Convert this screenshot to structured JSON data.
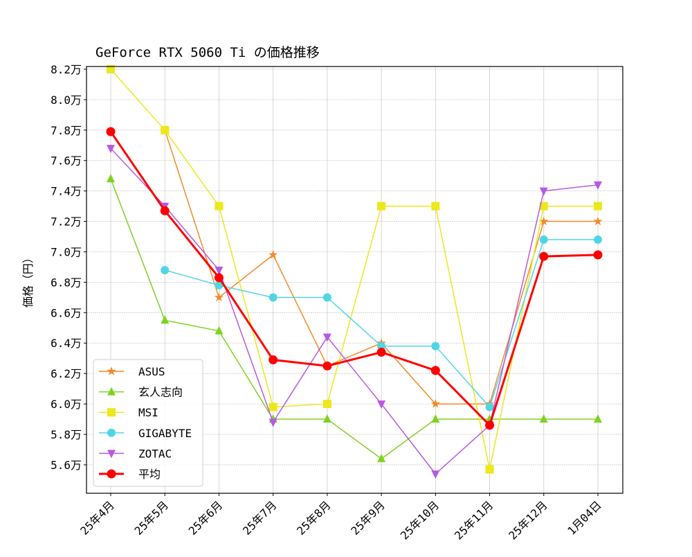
{
  "chart_data": {
    "type": "line",
    "title": "GeForce RTX 5060 Ti の価格推移",
    "ylabel": "価格（円）",
    "xlabel": "",
    "categories": [
      "25年4月",
      "25年5月",
      "25年6月",
      "25年7月",
      "25年8月",
      "25年9月",
      "25年10月",
      "25年11月",
      "25年12月",
      "1月04日"
    ],
    "yticks": [
      5.6,
      5.8,
      6.0,
      6.2,
      6.4,
      6.6,
      6.8,
      7.0,
      7.2,
      7.4,
      7.6,
      7.8,
      8.0,
      8.2
    ],
    "ytick_suffix": "万",
    "ylim": [
      5.413,
      8.218
    ],
    "grid": true,
    "legend_position": "lower-left",
    "series": [
      {
        "name": "ASUS",
        "color": "#f28a25",
        "marker": "star",
        "values": [
          null,
          7.8,
          6.7,
          6.98,
          6.25,
          6.4,
          6.0,
          6.0,
          7.2,
          7.2
        ]
      },
      {
        "name": "玄人志向",
        "color": "#7ed321",
        "marker": "triangle-up",
        "values": [
          7.48,
          6.55,
          6.48,
          5.9,
          5.9,
          5.64,
          5.9,
          5.9,
          5.9,
          5.9
        ]
      },
      {
        "name": "MSI",
        "color": "#ece81a",
        "marker": "square",
        "values": [
          8.2,
          7.8,
          7.3,
          5.98,
          6.0,
          7.3,
          7.3,
          5.57,
          7.3,
          7.3
        ]
      },
      {
        "name": "GIGABYTE",
        "color": "#4fd6e6",
        "marker": "circle",
        "values": [
          null,
          6.88,
          6.78,
          6.7,
          6.7,
          6.38,
          6.38,
          5.98,
          7.08,
          7.08
        ]
      },
      {
        "name": "ZOTAC",
        "color": "#b65ae0",
        "marker": "triangle-down",
        "values": [
          7.68,
          7.3,
          6.88,
          5.88,
          6.44,
          6.0,
          5.54,
          5.86,
          7.4,
          7.44
        ]
      },
      {
        "name": "平均",
        "color": "#ff0000",
        "marker": "circle",
        "bold": true,
        "values": [
          7.79,
          7.27,
          6.83,
          6.29,
          6.25,
          6.34,
          6.22,
          5.86,
          6.97,
          6.98
        ]
      }
    ]
  }
}
